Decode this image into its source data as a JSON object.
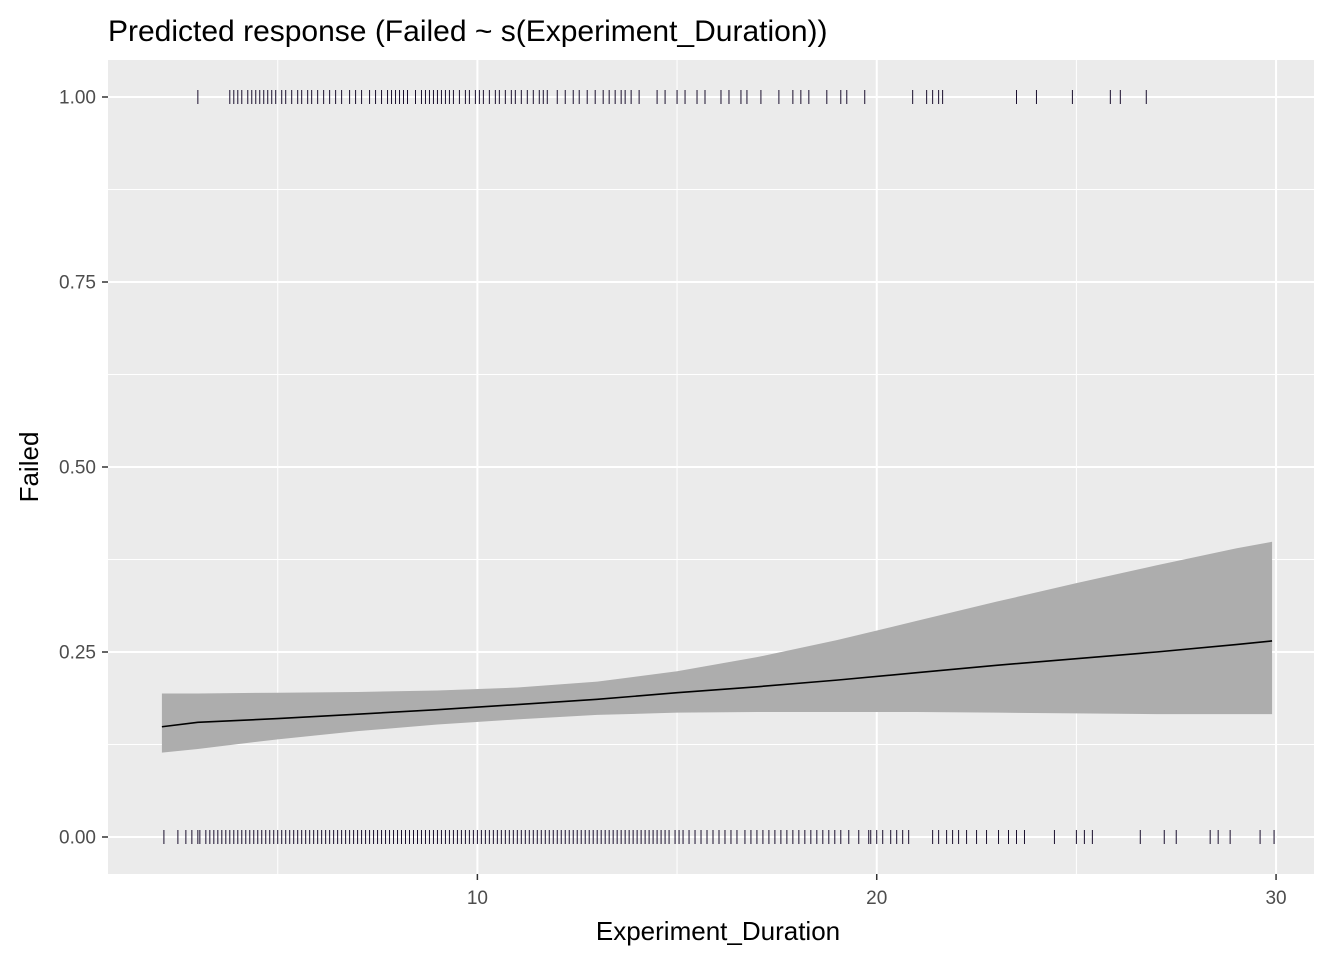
{
  "chart_data": {
    "type": "line",
    "title": "Predicted response (Failed ~ s(Experiment_Duration))",
    "xlabel": "Experiment_Duration",
    "ylabel": "Failed",
    "xlim": [
      0.75,
      30.95
    ],
    "ylim": [
      -0.05,
      1.05
    ],
    "x_ticks": [
      10,
      20,
      30
    ],
    "x_tick_labels": [
      "10",
      "20",
      "30"
    ],
    "y_ticks": [
      0,
      0.25,
      0.5,
      0.75,
      1
    ],
    "y_tick_labels": [
      "0.00",
      "0.25",
      "0.50",
      "0.75",
      "1.00"
    ],
    "grid": true,
    "legend": "none",
    "colors": {
      "panel_background": "#ebebeb",
      "grid_line": "#ffffff",
      "ribbon": "#adadad",
      "fit_line": "#000000",
      "rug": "#1a0f2e",
      "tick_label": "#4d4d4d"
    },
    "series": [
      {
        "name": "",
        "x": [
          2.1,
          3,
          5,
          7,
          9,
          11,
          13,
          15,
          17,
          19,
          21,
          23,
          25,
          27,
          29,
          29.9
        ],
        "y": [
          0.149,
          0.155,
          0.16,
          0.166,
          0.172,
          0.179,
          0.186,
          0.195,
          0.203,
          0.212,
          0.222,
          0.232,
          0.241,
          0.25,
          0.26,
          0.265
        ],
        "lower": [
          0.114,
          0.119,
          0.132,
          0.143,
          0.152,
          0.159,
          0.165,
          0.168,
          0.169,
          0.169,
          0.169,
          0.168,
          0.167,
          0.166,
          0.166,
          0.166
        ],
        "upper": [
          0.194,
          0.194,
          0.195,
          0.196,
          0.198,
          0.202,
          0.21,
          0.224,
          0.243,
          0.266,
          0.292,
          0.318,
          0.343,
          0.367,
          0.39,
          0.399
        ]
      }
    ],
    "rug_top": {
      "y": 1,
      "x": [
        3.0,
        3.8,
        3.9,
        4.0,
        4.1,
        4.25,
        4.35,
        4.45,
        4.55,
        4.65,
        4.75,
        4.85,
        4.95,
        5.1,
        5.2,
        5.35,
        5.5,
        5.6,
        5.75,
        5.85,
        6.0,
        6.15,
        6.3,
        6.45,
        6.6,
        6.8,
        6.95,
        7.1,
        7.3,
        7.45,
        7.6,
        7.75,
        7.85,
        7.95,
        8.05,
        8.15,
        8.25,
        8.45,
        8.6,
        8.7,
        8.8,
        8.9,
        9.0,
        9.1,
        9.2,
        9.3,
        9.4,
        9.55,
        9.7,
        9.8,
        9.95,
        10.05,
        10.15,
        10.3,
        10.45,
        10.55,
        10.7,
        10.85,
        10.95,
        11.1,
        11.25,
        11.4,
        11.55,
        11.65,
        11.75,
        12.0,
        12.2,
        12.4,
        12.55,
        12.75,
        12.95,
        13.15,
        13.3,
        13.45,
        13.6,
        13.7,
        13.85,
        14.05,
        14.5,
        14.7,
        15.0,
        15.2,
        15.5,
        15.7,
        16.1,
        16.3,
        16.6,
        16.75,
        17.1,
        17.55,
        17.9,
        18.1,
        18.3,
        18.75,
        19.1,
        19.25,
        19.7,
        20.9,
        21.25,
        21.4,
        21.55,
        21.65,
        23.5,
        24.0,
        24.9,
        25.85,
        26.1,
        26.75
      ]
    },
    "rug_bottom": {
      "y": 0,
      "x": [
        2.15,
        2.5,
        2.7,
        2.85,
        3.0,
        3.05,
        3.2,
        3.3,
        3.4,
        3.5,
        3.6,
        3.7,
        3.8,
        3.9,
        4.0,
        4.1,
        4.2,
        4.3,
        4.4,
        4.5,
        4.6,
        4.7,
        4.8,
        4.9,
        5.0,
        5.1,
        5.2,
        5.3,
        5.4,
        5.5,
        5.6,
        5.7,
        5.8,
        5.9,
        6.0,
        6.1,
        6.2,
        6.3,
        6.4,
        6.5,
        6.6,
        6.7,
        6.8,
        6.9,
        7.0,
        7.1,
        7.2,
        7.3,
        7.4,
        7.5,
        7.6,
        7.7,
        7.8,
        7.9,
        8.0,
        8.1,
        8.2,
        8.3,
        8.4,
        8.5,
        8.6,
        8.7,
        8.8,
        8.9,
        9.0,
        9.1,
        9.2,
        9.3,
        9.4,
        9.5,
        9.6,
        9.7,
        9.8,
        9.9,
        10.0,
        10.1,
        10.2,
        10.3,
        10.4,
        10.5,
        10.6,
        10.7,
        10.8,
        10.9,
        11.0,
        11.1,
        11.2,
        11.3,
        11.4,
        11.5,
        11.6,
        11.7,
        11.8,
        11.9,
        12.0,
        12.1,
        12.2,
        12.3,
        12.4,
        12.5,
        12.6,
        12.7,
        12.8,
        12.9,
        13.0,
        13.1,
        13.2,
        13.3,
        13.4,
        13.5,
        13.6,
        13.7,
        13.8,
        13.9,
        14.0,
        14.1,
        14.2,
        14.3,
        14.4,
        14.5,
        14.6,
        14.7,
        14.8,
        14.95,
        15.05,
        15.15,
        15.3,
        15.45,
        15.6,
        15.75,
        15.9,
        16.05,
        16.2,
        16.35,
        16.5,
        16.7,
        16.85,
        17.0,
        17.15,
        17.3,
        17.45,
        17.6,
        17.75,
        17.9,
        18.05,
        18.2,
        18.35,
        18.5,
        18.65,
        18.8,
        18.95,
        19.1,
        19.3,
        19.55,
        19.8,
        19.85,
        20.0,
        20.15,
        20.35,
        20.5,
        20.65,
        20.8,
        21.4,
        21.55,
        21.75,
        21.9,
        22.05,
        22.25,
        22.5,
        22.75,
        23.05,
        23.3,
        23.5,
        23.7,
        24.45,
        25.0,
        25.2,
        25.4,
        26.6,
        27.2,
        27.5,
        28.35,
        28.55,
        28.85,
        29.6,
        29.95
      ]
    }
  }
}
